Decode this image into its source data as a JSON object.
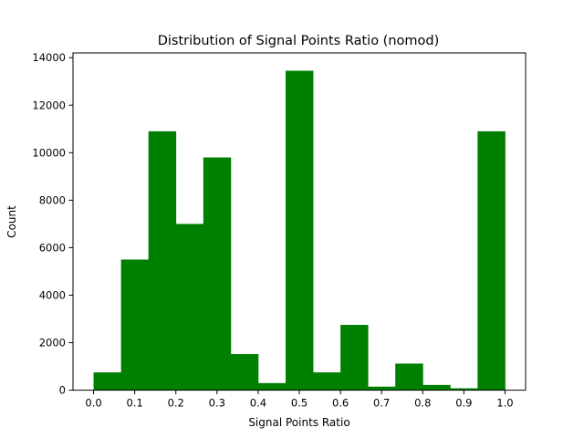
{
  "chart_data": {
    "type": "bar",
    "title": "Distribution of Signal Points Ratio (nomod)",
    "xlabel": "Signal Points Ratio",
    "ylabel": "Count",
    "color": "#008000",
    "bin_edges": [
      0.0,
      0.0667,
      0.1333,
      0.2,
      0.2667,
      0.3333,
      0.4,
      0.4667,
      0.5333,
      0.6,
      0.6667,
      0.7333,
      0.8,
      0.8667,
      0.9333,
      1.0
    ],
    "values": [
      750,
      5500,
      10900,
      7000,
      9800,
      1520,
      300,
      13450,
      750,
      2750,
      150,
      1120,
      220,
      80,
      10900
    ],
    "xlim": [
      -0.05,
      1.05
    ],
    "ylim": [
      0,
      14200
    ],
    "xticks": [
      0.0,
      0.1,
      0.2,
      0.3,
      0.4,
      0.5,
      0.6,
      0.7,
      0.8,
      0.9,
      1.0
    ],
    "xtick_labels": [
      "0.0",
      "0.1",
      "0.2",
      "0.3",
      "0.4",
      "0.5",
      "0.6",
      "0.7",
      "0.8",
      "0.9",
      "1.0"
    ],
    "yticks": [
      0,
      2000,
      4000,
      6000,
      8000,
      10000,
      12000,
      14000
    ],
    "ytick_labels": [
      "0",
      "2000",
      "4000",
      "6000",
      "8000",
      "10000",
      "12000",
      "14000"
    ],
    "grid": false,
    "legend": "none"
  }
}
